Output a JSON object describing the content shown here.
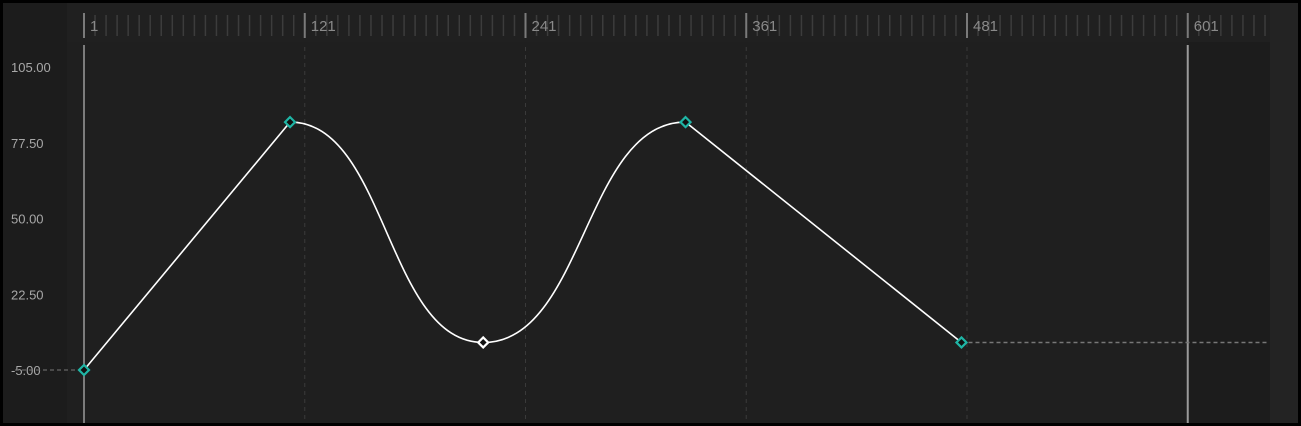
{
  "ruler": {
    "labels": [
      "1",
      "121",
      "241",
      "361",
      "481",
      "601"
    ],
    "frames": [
      1,
      121,
      241,
      361,
      481,
      601
    ]
  },
  "value_axis": {
    "labels": [
      "105.00",
      "77.50",
      "50.00",
      "22.50",
      "-5.00"
    ],
    "values": [
      105,
      77.5,
      50,
      22.5,
      -5
    ]
  },
  "keyframes": [
    {
      "frame": 113,
      "value": 85,
      "selected": false,
      "interp_out": "bezier"
    },
    {
      "frame": 1,
      "value": -5,
      "selected": false,
      "interp_out": "linear"
    },
    {
      "frame": 218,
      "value": 5,
      "selected": true,
      "interp_out": "bezier"
    },
    {
      "frame": 328,
      "value": 85,
      "selected": false,
      "interp_out": "linear"
    },
    {
      "frame": 478,
      "value": 5,
      "selected": false,
      "interp_out": "constant"
    }
  ],
  "end_frame": 601,
  "colors": {
    "keyframe": "#1fb5a5",
    "selected_keyframe": "#ffffff",
    "curve": "#ffffff",
    "background": "#1f1f1f"
  }
}
